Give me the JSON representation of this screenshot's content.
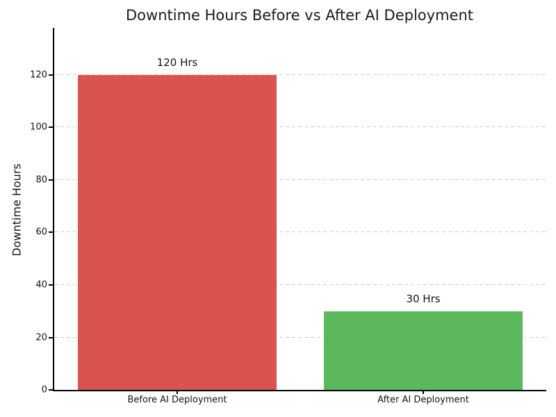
{
  "chart_data": {
    "type": "bar",
    "title": "Downtime Hours Before vs After AI Deployment",
    "xlabel": "",
    "ylabel": "Downtime Hours",
    "categories": [
      "Before AI Deployment",
      "After AI Deployment"
    ],
    "values": [
      120,
      30
    ],
    "bar_labels": [
      "120 Hrs",
      "30 Hrs"
    ],
    "bar_colors": [
      "#d9534f",
      "#5cb85c"
    ],
    "yticks": [
      0,
      20,
      40,
      60,
      80,
      100,
      120
    ],
    "ylim": [
      0,
      138
    ],
    "bar_width_pct": 40.5,
    "grid": "horizontal dashed",
    "gridline_color": "#cccccc",
    "legend": "none",
    "background_color": "#ffffff",
    "title_color": "#1a1a1a"
  }
}
